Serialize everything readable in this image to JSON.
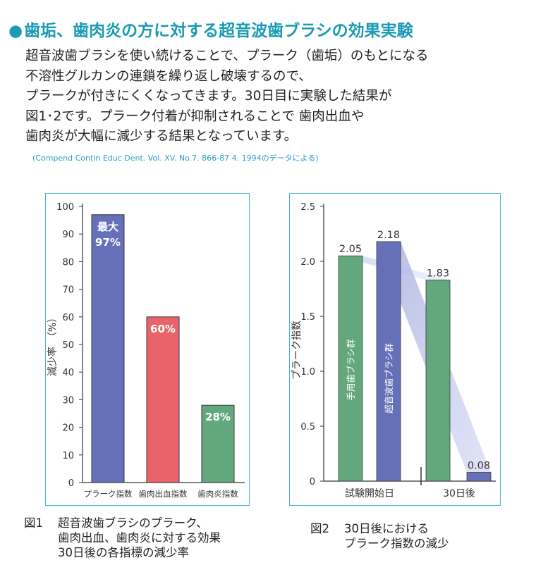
{
  "title": "歯垢、歯肉炎の方に対する超音波歯ブラシの効果実験",
  "title_bullet": "●",
  "intro_lines": [
    "超音波歯ブラシを使い続けることで、プラーク（歯垢）のもとになる",
    "不溶性グルカンの連鎖を繰り返し破壊するので、",
    "プラークが付きにくくなってきます。30日目に実験した結果が",
    "図1･2です。プラーク付着が抑制されることで 歯肉出血や",
    "歯肉炎が大幅に減少する結果となっています。"
  ],
  "citation": "(Compend Contin Educ Dent. Vol. XV. No.7. 866-87 4. 1994のデータによる)",
  "colors": {
    "accent": "#1a9bb3",
    "panel_border": "#47b6cf",
    "blue_bar": "#6670b8",
    "red_bar": "#e8646a",
    "green_bar": "#62a87c"
  },
  "chart_data": [
    {
      "type": "bar",
      "ylabel": "減少率　（%）",
      "ylim": [
        0,
        100
      ],
      "yticks": [
        0,
        10,
        20,
        30,
        40,
        50,
        60,
        70,
        80,
        90,
        100
      ],
      "categories": [
        "プラーク指数",
        "歯肉出血指数",
        "歯肉炎指数"
      ],
      "values": [
        97,
        60,
        28
      ],
      "labels": [
        [
          "最大",
          "97%"
        ],
        [
          "60%"
        ],
        [
          "28%"
        ]
      ],
      "bar_colors": [
        "#6670b8",
        "#e8646a",
        "#62a87c"
      ],
      "grid": false
    },
    {
      "type": "bar",
      "ylabel": "プラーク指数",
      "ylim": [
        0,
        2.5
      ],
      "yticks": [
        "0",
        "0.5",
        "1.0",
        "1.5",
        "2.0",
        "2.5"
      ],
      "groups": [
        "試験開始日",
        "30日後"
      ],
      "series": [
        {
          "name": "手用歯ブラシ群",
          "values": [
            2.05,
            1.83
          ],
          "color": "#62a87c"
        },
        {
          "name": "超音波歯ブラシ群",
          "values": [
            2.18,
            0.08
          ],
          "color": "#6670b8"
        }
      ],
      "value_labels": [
        [
          "2.05",
          "1.83"
        ],
        [
          "2.18",
          "0.08"
        ]
      ],
      "grid": false
    }
  ],
  "captions": [
    {
      "number": "図1",
      "lines": [
        "超音波歯ブラシのプラーク、",
        "歯肉出血、歯肉炎に対する効果",
        "30日後の各指標の減少率"
      ]
    },
    {
      "number": "図2",
      "lines": [
        "30日後における",
        "プラーク指数の減少"
      ]
    }
  ]
}
